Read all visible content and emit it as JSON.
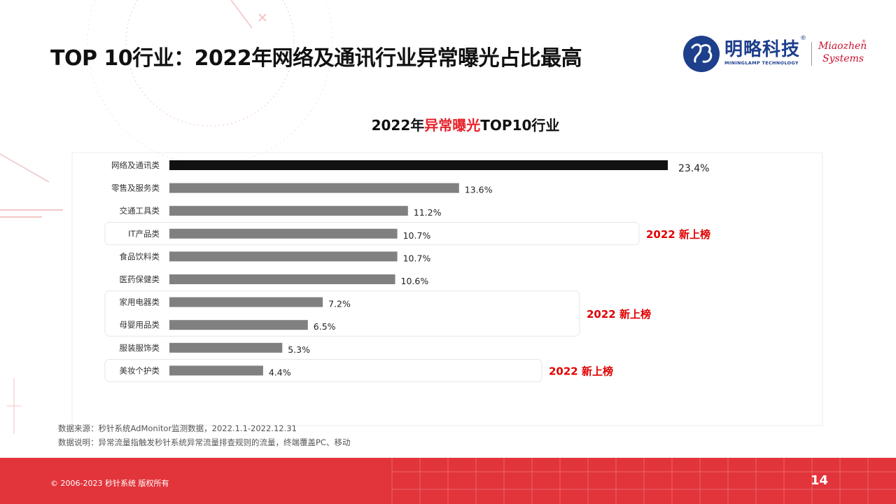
{
  "header": {
    "title": "TOP 10行业：2022年网络及通讯行业异常曝光占比最高"
  },
  "logo": {
    "cn_name": "明略科技",
    "registered": "®",
    "en_name": "MININGLAMP TECHNOLOGY",
    "partner_line1": "Miaozhen",
    "partner_line2": "Systems",
    "partner_registered": "®"
  },
  "colors": {
    "accent": "#e8212a",
    "top_bar": "#111111",
    "bar": "#808080",
    "footer": "#e2343b",
    "badge_text": "#e00000"
  },
  "chart_data": {
    "type": "bar",
    "orientation": "horizontal",
    "title_prefix": "2022年",
    "title_highlight": "异常曝光",
    "title_suffix": "TOP10行业",
    "categories": [
      "网络及通讯类",
      "零售及服务类",
      "交通工具类",
      "IT产品类",
      "食品饮料类",
      "医药保健类",
      "家用电器类",
      "母婴用品类",
      "服装服饰类",
      "美妆个护类"
    ],
    "values": [
      23.4,
      13.6,
      11.2,
      10.7,
      10.7,
      10.6,
      7.2,
      6.5,
      5.3,
      4.4
    ],
    "value_labels": [
      "23.4%",
      "13.6%",
      "11.2%",
      "10.7%",
      "10.7%",
      "10.6%",
      "7.2%",
      "6.5%",
      "5.3%",
      "4.4%"
    ],
    "unit": "%",
    "xlim": [
      0,
      23.4
    ],
    "highlight_index": 0,
    "annotations": [
      {
        "label": "2022 新上榜",
        "category_indices": [
          3
        ]
      },
      {
        "label": "2022 新上榜",
        "category_indices": [
          6,
          7
        ]
      },
      {
        "label": "2022 新上榜",
        "category_indices": [
          9
        ]
      }
    ]
  },
  "notes": {
    "source": "数据来源：秒针系统AdMonitor监测数据，2022.1.1-2022.12.31",
    "explanation": "数据说明：异常流量指触发秒针系统异常流量排查规则的流量，终端覆盖PC、移动"
  },
  "footer": {
    "copyright": "© 2006-2023 秒针系统 版权所有",
    "page_number": "14"
  }
}
